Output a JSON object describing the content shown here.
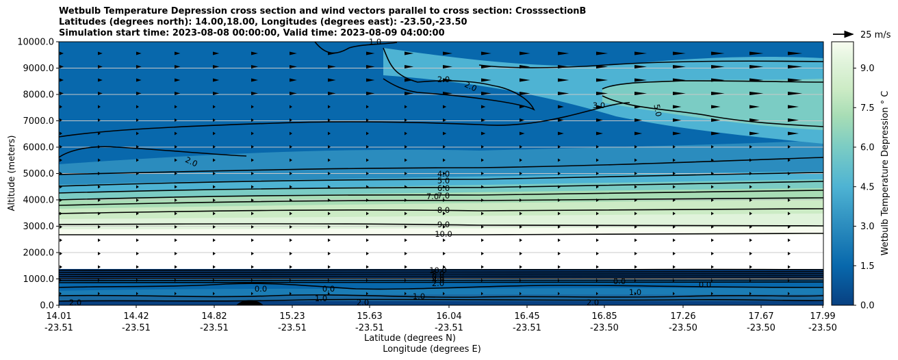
{
  "title_lines": [
    "Wetbulb Temperature Depression cross section and wind vectors parallel to cross section: CrosssectionB",
    "Latitudes (degrees north): 14.00,18.00, Longitudes (degrees east): -23.50,-23.50",
    "Simulation start time: 2023-08-08 00:00:00, Valid time: 2023-08-09 04:00:00"
  ],
  "chart_data": {
    "type": "heatmap",
    "xlabel_lat": "Latitude (degrees N)",
    "xlabel_lon": "Longitude (degrees E)",
    "ylabel": "Altitude (meters)",
    "ylim": [
      0,
      10000
    ],
    "yticks": [
      "0.0",
      "1000.0",
      "2000.0",
      "3000.0",
      "4000.0",
      "5000.0",
      "6000.0",
      "7000.0",
      "8000.0",
      "9000.0",
      "10000.0"
    ],
    "xticks": [
      {
        "lat": "14.01",
        "lon": "-23.51"
      },
      {
        "lat": "14.42",
        "lon": "-23.51"
      },
      {
        "lat": "14.82",
        "lon": "-23.51"
      },
      {
        "lat": "15.23",
        "lon": "-23.51"
      },
      {
        "lat": "15.63",
        "lon": "-23.51"
      },
      {
        "lat": "16.04",
        "lon": "-23.51"
      },
      {
        "lat": "16.45",
        "lon": "-23.51"
      },
      {
        "lat": "16.85",
        "lon": "-23.50"
      },
      {
        "lat": "17.26",
        "lon": "-23.50"
      },
      {
        "lat": "17.67",
        "lon": "-23.50"
      },
      {
        "lat": "17.99",
        "lon": "-23.50"
      }
    ],
    "grid": "horizontal",
    "colorbar": {
      "label": "Wetbulb Temperature Depression $^\\circ$C",
      "label_display": "Wetbulb Temperature Depression ° C",
      "range": [
        0,
        10
      ],
      "ticks": [
        "0.0",
        "1.5",
        "3.0",
        "4.5",
        "6.0",
        "7.5",
        "9.0"
      ],
      "colormap": "GnBu",
      "colors": [
        "#084081",
        "#0868ac",
        "#2b8cbe",
        "#4eb3d3",
        "#7bccc4",
        "#a8ddb5",
        "#ccebc5",
        "#e0f3db",
        "#f7fcf0"
      ]
    },
    "quiver_key": "25 m/s",
    "contour_labels": [
      "1.0",
      "2.0",
      "2.0",
      "3.0",
      "5.0",
      "2.0",
      "4.0",
      "5.0",
      "6.0",
      "7.0",
      "7.0",
      "8.0",
      "9.0",
      "10.0",
      "10.0",
      "8.0",
      "6.0",
      "4.0",
      "2.0",
      "0.0",
      "0.0",
      "0.0",
      "0.0",
      "1.0",
      "1.0",
      "1.0",
      "2.0",
      "2.0",
      "2.0"
    ]
  }
}
